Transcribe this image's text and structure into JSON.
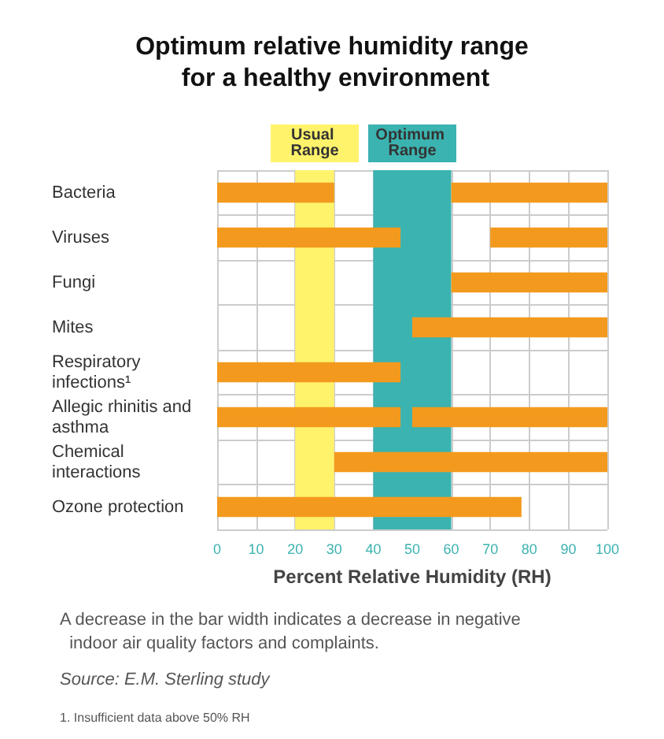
{
  "chart_data": {
    "type": "bar",
    "orientation": "horizontal",
    "title": "Optimum relative humidity range for a healthy environment",
    "xlabel": "Percent Relative Humidity (RH)",
    "categories": [
      "Bacteria",
      "Viruses",
      "Fungi",
      "Mites",
      "Respiratory infections¹",
      "Allegic rhinitis and asthma",
      "Chemical interactions",
      "Ozone protection"
    ],
    "series": [
      {
        "color": "#f39a1e",
        "base": [
          0,
          0,
          null,
          null,
          0,
          0,
          null,
          0
        ],
        "values": [
          30,
          47,
          null,
          null,
          47,
          47,
          null,
          78
        ]
      },
      {
        "color": "#f39a1e",
        "base": [
          60,
          70,
          60,
          50,
          null,
          50,
          30,
          null
        ],
        "values": [
          40,
          30,
          40,
          50,
          null,
          50,
          70,
          null
        ]
      }
    ],
    "xlim": [
      0,
      100
    ],
    "xticks": [
      0,
      10,
      20,
      30,
      40,
      50,
      60,
      70,
      80,
      90,
      100
    ],
    "grid": true,
    "bands": [
      {
        "axis": "x",
        "from": 20,
        "to": 30,
        "label": "Usual Range",
        "color": "#fff36b"
      },
      {
        "axis": "x",
        "from": 40,
        "to": 60,
        "label": "Optimum Range",
        "color": "#3bb3b0"
      }
    ],
    "annotations": [
      "A decrease in the bar width indicates a decrease in negative  indoor air quality factors and complaints.",
      "Source: E.M. Sterling study",
      "1. Insufficient data above 50% RH"
    ]
  }
}
